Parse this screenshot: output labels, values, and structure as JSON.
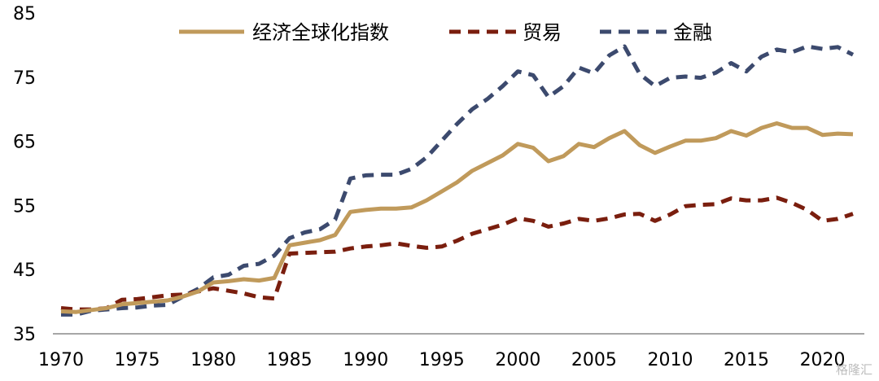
{
  "chart_data": {
    "type": "line",
    "title": "",
    "xlabel": "",
    "ylabel": "",
    "xlim": [
      1970,
      2022
    ],
    "ylim": [
      35,
      85
    ],
    "yticks": [
      35,
      45,
      55,
      65,
      75,
      85
    ],
    "xticks": [
      1970,
      1975,
      1980,
      1985,
      1990,
      1995,
      2000,
      2005,
      2010,
      2015,
      2020
    ],
    "grid": false,
    "legend": "top-center",
    "x": [
      1970,
      1971,
      1972,
      1973,
      1974,
      1975,
      1976,
      1977,
      1978,
      1979,
      1980,
      1981,
      1982,
      1983,
      1984,
      1985,
      1986,
      1987,
      1988,
      1989,
      1990,
      1991,
      1992,
      1993,
      1994,
      1995,
      1996,
      1997,
      1998,
      1999,
      2000,
      2001,
      2002,
      2003,
      2004,
      2005,
      2006,
      2007,
      2008,
      2009,
      2010,
      2011,
      2012,
      2013,
      2014,
      2015,
      2016,
      2017,
      2018,
      2019,
      2020,
      2021,
      2022
    ],
    "series": [
      {
        "name": "经济全球化指数",
        "color": "#C09A5B",
        "dash": "solid",
        "values": [
          38.5,
          38.4,
          38.7,
          39.0,
          39.6,
          39.8,
          40.0,
          40.2,
          40.8,
          41.6,
          43.0,
          43.2,
          43.5,
          43.3,
          43.7,
          48.8,
          49.2,
          49.6,
          50.4,
          54.0,
          54.3,
          54.5,
          54.5,
          54.7,
          55.8,
          57.2,
          58.6,
          60.4,
          61.6,
          62.8,
          64.6,
          64.0,
          61.9,
          62.7,
          64.6,
          64.1,
          65.5,
          66.6,
          64.4,
          63.2,
          64.2,
          65.1,
          65.1,
          65.5,
          66.6,
          65.9,
          67.1,
          67.8,
          67.1,
          67.1,
          66.0,
          66.2,
          66.1
        ]
      },
      {
        "name": "贸易",
        "color": "#7A1E0E",
        "dash": "dashed",
        "values": [
          39.0,
          38.8,
          38.8,
          39.0,
          40.3,
          40.4,
          40.7,
          41.0,
          41.1,
          41.6,
          42.1,
          41.7,
          41.3,
          40.7,
          40.5,
          47.5,
          47.6,
          47.7,
          47.8,
          48.3,
          48.6,
          48.8,
          49.1,
          48.7,
          48.4,
          48.6,
          49.5,
          50.6,
          51.3,
          52.0,
          53.0,
          52.6,
          51.7,
          52.2,
          52.9,
          52.6,
          53.0,
          53.6,
          53.7,
          52.6,
          53.6,
          54.9,
          55.1,
          55.2,
          56.1,
          55.8,
          55.8,
          56.2,
          55.4,
          54.3,
          52.6,
          52.9,
          53.7
        ]
      },
      {
        "name": "金融",
        "color": "#3C4A6E",
        "dash": "dashed",
        "values": [
          38.0,
          38.0,
          38.6,
          38.8,
          39.0,
          39.1,
          39.4,
          39.5,
          40.8,
          42.0,
          43.8,
          44.2,
          45.6,
          45.9,
          47.2,
          49.9,
          50.8,
          51.3,
          52.8,
          59.2,
          59.7,
          59.8,
          59.8,
          60.7,
          62.5,
          65.1,
          67.7,
          70.0,
          71.6,
          73.6,
          75.9,
          75.3,
          71.9,
          73.6,
          76.5,
          75.6,
          78.4,
          79.8,
          75.5,
          73.6,
          74.9,
          75.1,
          74.9,
          75.7,
          77.2,
          75.9,
          78.2,
          79.3,
          78.9,
          79.8,
          79.4,
          79.7,
          78.5
        ]
      }
    ]
  },
  "watermark": "格隆汇"
}
